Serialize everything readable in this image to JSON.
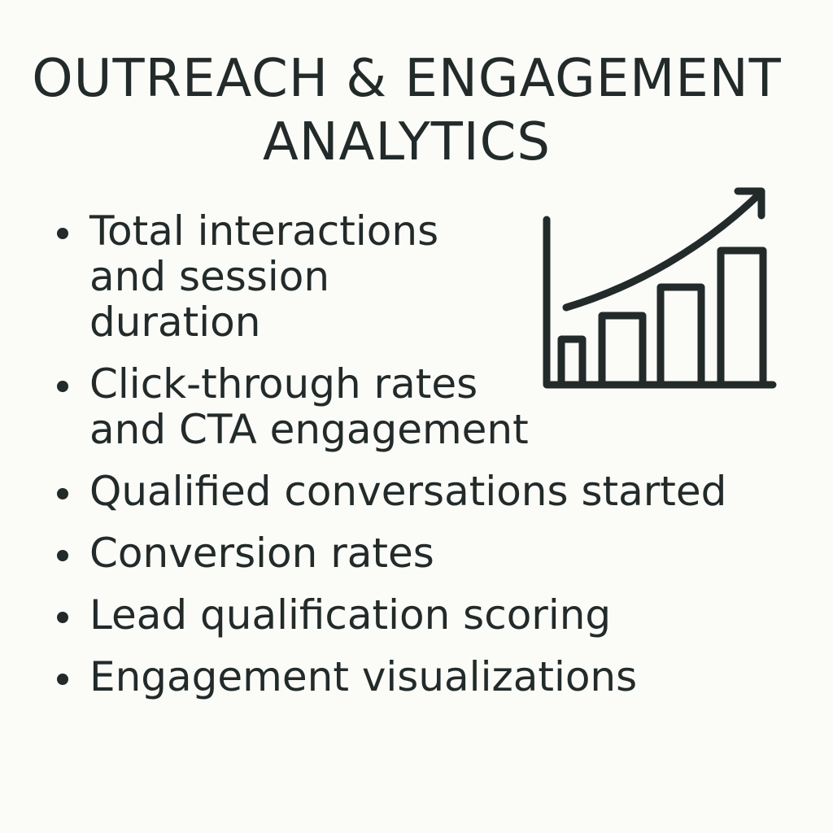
{
  "title": {
    "line1": "OUTREACH & ENGAGEMENT",
    "line2": "ANALYTICS"
  },
  "bullets": [
    {
      "lines": [
        "Total interactions",
        "and session",
        "duration"
      ]
    },
    {
      "lines": [
        "Click-through rates",
        "and CTA engagement"
      ]
    },
    {
      "lines": [
        "Qualified conversations started"
      ]
    },
    {
      "lines": [
        "Conversion rates"
      ]
    },
    {
      "lines": [
        "Lead qualification scoring"
      ]
    },
    {
      "lines": [
        "Engagement visualizations"
      ]
    }
  ],
  "icon": {
    "name": "growth-bar-chart-icon",
    "color": "#222a2a"
  }
}
